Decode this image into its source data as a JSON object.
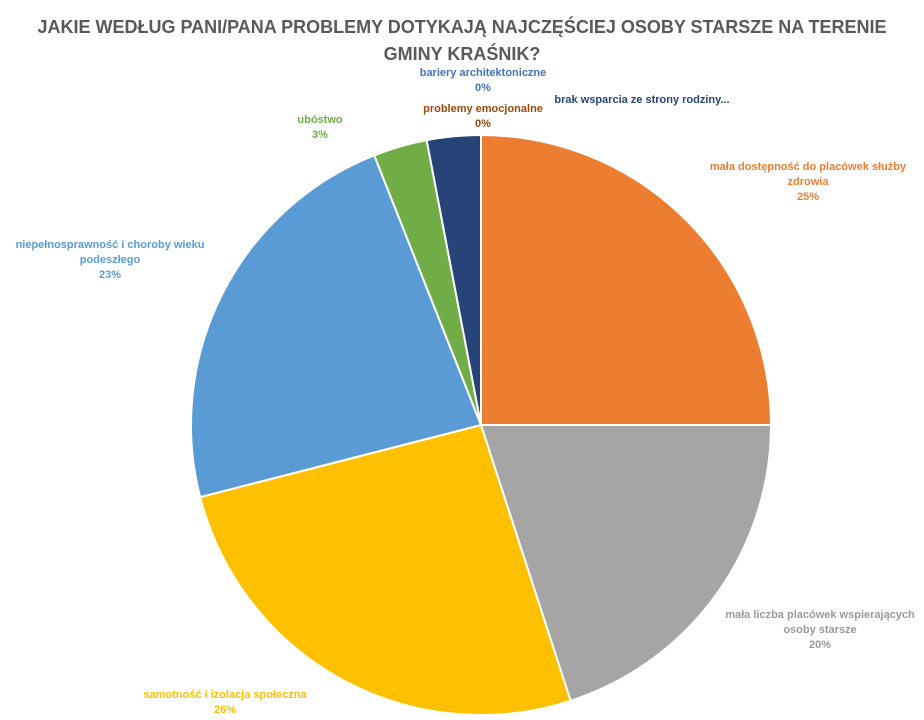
{
  "chart_data": {
    "type": "pie",
    "title": "JAKIE WEDŁUG PANI/PANA PROBLEMY DOTYKAJĄ NAJCZĘŚCIEJ OSOBY STARSZE NA TERENIE GMINY KRAŚNIK?",
    "categories": [
      "mała dostępność do placówek służby zdrowia",
      "mała liczba placówek wspierających osoby starsze",
      "samotność i izolacja społeczna",
      "niepełnosprawność i choroby wieku podeszłego",
      "ubóstwo",
      "brak wsparcia ze strony rodziny...",
      "problemy emocjonalne",
      "bariery architektoniczne"
    ],
    "values": [
      25,
      20,
      26,
      23,
      3,
      3,
      0,
      0
    ],
    "value_labels": [
      "25%",
      "20%",
      "26%",
      "23%",
      "3%",
      null,
      "0%",
      "0%"
    ],
    "colors": [
      "#ED7D31",
      "#A5A5A5",
      "#FFC000",
      "#5B9BD5",
      "#70AD47",
      "#264478",
      "#9E480E",
      "#4472C4"
    ]
  }
}
